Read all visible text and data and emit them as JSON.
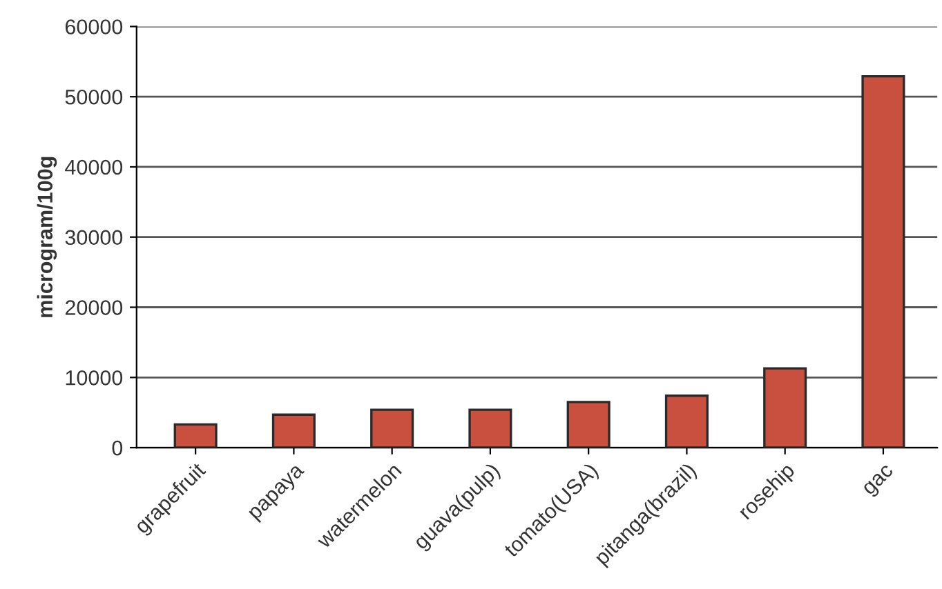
{
  "chart_data": {
    "type": "bar",
    "ylabel": "microgram/100g",
    "categories": [
      "grapefruit",
      "papaya",
      "watermelon",
      "guava(pulp)",
      "tomato(USA)",
      "pitanga(brazil)",
      "rosehip",
      "gac"
    ],
    "values": [
      3300,
      4700,
      5400,
      5400,
      6500,
      7400,
      11300,
      52900
    ],
    "color": "#c9503f",
    "ylim": [
      0,
      60000
    ],
    "yticks": [
      0,
      10000,
      20000,
      30000,
      40000,
      50000,
      60000
    ],
    "grid": "y",
    "legend": false
  }
}
